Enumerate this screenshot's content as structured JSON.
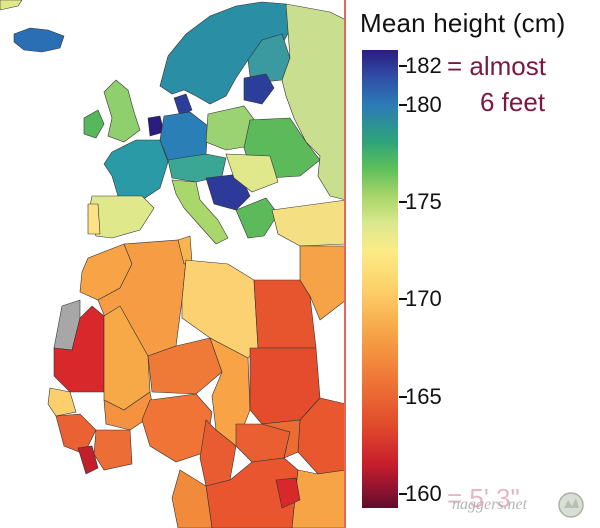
{
  "legend": {
    "title": "Mean height (cm)",
    "ticks": [
      {
        "value": 182,
        "label": "182"
      },
      {
        "value": 180,
        "label": "180"
      },
      {
        "value": 175,
        "label": "175"
      },
      {
        "value": 170,
        "label": "170"
      },
      {
        "value": 165,
        "label": "165"
      },
      {
        "value": 160,
        "label": "160"
      }
    ],
    "annotation_top_line1": "= almost",
    "annotation_top_line2": "6 feet",
    "annotation_bottom": "= 5' 3\""
  },
  "watermark": "naggers.net",
  "colors": {
    "tall": "#2b1c80",
    "short": "#5e0c2c",
    "no_data": "#a7a7a7",
    "divider": "#e2665f"
  }
}
